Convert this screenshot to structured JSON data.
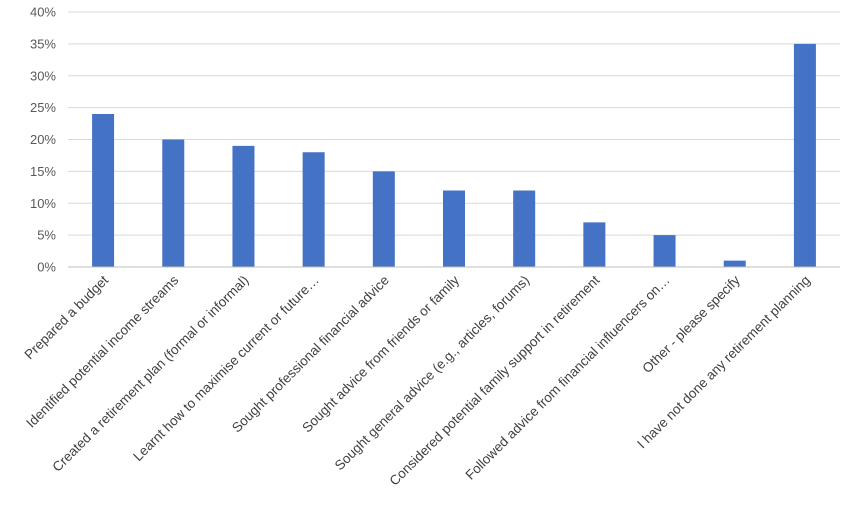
{
  "chart_data": {
    "type": "bar",
    "title": "",
    "xlabel": "",
    "ylabel": "",
    "ylim": [
      0,
      0.4
    ],
    "yticks": [
      0,
      0.05,
      0.1,
      0.15,
      0.2,
      0.25,
      0.3,
      0.35,
      0.4
    ],
    "ytick_labels": [
      "0%",
      "5%",
      "10%",
      "15%",
      "20%",
      "25%",
      "30%",
      "35%",
      "40%"
    ],
    "grid": true,
    "legend": "none",
    "bar_color": "#4472C4",
    "categories": [
      "Prepared a budget",
      "Identified potential income streams",
      "Created a retirement plan (formal or informal)",
      "Learnt how to maximise current or future…",
      "Sought professional financial advice",
      "Sought advice from friends or family",
      "Sought general advice (e.g., articles, forums)",
      "Considered potential family support in retirement",
      "Followed advice from financial influencers on…",
      "Other - please specify",
      "I have not done any retirement planning"
    ],
    "values": [
      0.24,
      0.2,
      0.19,
      0.18,
      0.15,
      0.12,
      0.12,
      0.07,
      0.05,
      0.01,
      0.35
    ]
  }
}
